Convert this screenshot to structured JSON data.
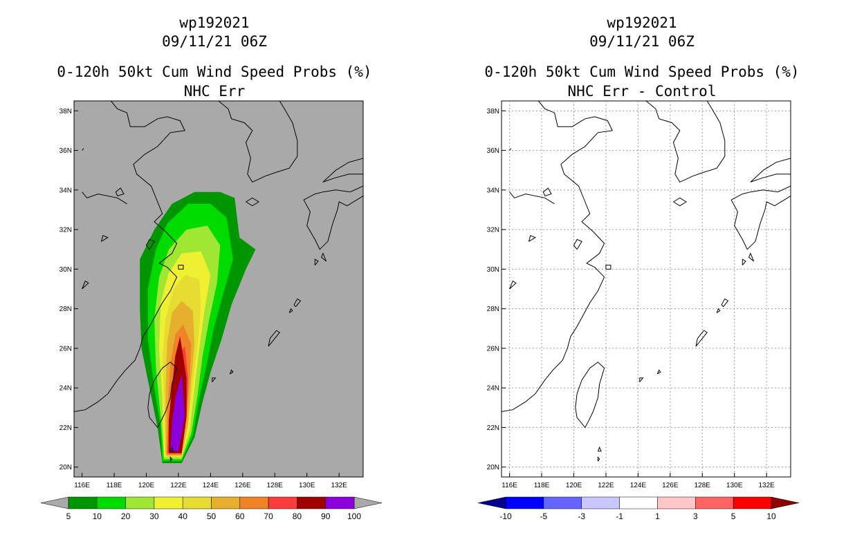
{
  "left": {
    "title1": "wp192021",
    "title2": "09/11/21 06Z",
    "title3": "0-120h 50kt Cum Wind Speed Probs (%)",
    "title4": "NHC Err",
    "background": "#a9a9a9"
  },
  "right": {
    "title1": "wp192021",
    "title2": "09/11/21 06Z",
    "title3": "0-120h 50kt Cum Wind Speed Probs (%)",
    "title4": "NHC Err - Control",
    "background": "#ffffff"
  },
  "lon_labels": [
    "116E",
    "118E",
    "120E",
    "122E",
    "124E",
    "126E",
    "128E",
    "130E",
    "132E"
  ],
  "lat_labels": [
    "38N",
    "36N",
    "34N",
    "32N",
    "30N",
    "28N",
    "26N",
    "24N",
    "22N",
    "20N"
  ],
  "left_colorbar": {
    "ticks": [
      "5",
      "10",
      "20",
      "30",
      "40",
      "50",
      "60",
      "70",
      "80",
      "90",
      "100"
    ],
    "colors": [
      "#009600",
      "#00dc00",
      "#a0e632",
      "#f0f032",
      "#e6dc32",
      "#e6af2d",
      "#f08228",
      "#fa3c3c",
      "#a00000",
      "#8c00dc"
    ],
    "under_color": "#a9a9a9",
    "over_color": "#a9a9a9"
  },
  "right_colorbar": {
    "ticks": [
      "-10",
      "-5",
      "-3",
      "-1",
      "1",
      "3",
      "5",
      "10"
    ],
    "colors": [
      "#0000ff",
      "#6464ff",
      "#c8c8ff",
      "#ffffff",
      "#ffc8c8",
      "#ff6464",
      "#ff0000"
    ],
    "under_color": "#00008c",
    "over_color": "#8c0000"
  },
  "probability_contours": [
    {
      "level": 5,
      "color": "#009600"
    },
    {
      "level": 10,
      "color": "#00dc00"
    },
    {
      "level": 20,
      "color": "#a0e632"
    },
    {
      "level": 30,
      "color": "#f0f032"
    },
    {
      "level": 40,
      "color": "#e6dc32"
    },
    {
      "level": 50,
      "color": "#e6af2d"
    },
    {
      "level": 60,
      "color": "#f08228"
    },
    {
      "level": 70,
      "color": "#fa3c3c"
    },
    {
      "level": 80,
      "color": "#a00000"
    },
    {
      "level": 90,
      "color": "#8c00dc"
    }
  ]
}
